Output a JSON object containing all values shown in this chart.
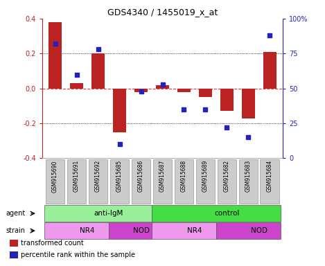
{
  "title": "GDS4340 / 1455019_x_at",
  "samples": [
    "GSM915690",
    "GSM915691",
    "GSM915692",
    "GSM915685",
    "GSM915686",
    "GSM915687",
    "GSM915688",
    "GSM915689",
    "GSM915682",
    "GSM915683",
    "GSM915684"
  ],
  "bar_values": [
    0.38,
    0.03,
    0.2,
    -0.25,
    -0.02,
    0.02,
    -0.02,
    -0.05,
    -0.13,
    -0.17,
    0.21
  ],
  "scatter_values": [
    82,
    60,
    78,
    10,
    48,
    53,
    35,
    35,
    22,
    15,
    88
  ],
  "ylim": [
    -0.4,
    0.4
  ],
  "yticks_left": [
    -0.4,
    -0.2,
    0.0,
    0.2,
    0.4
  ],
  "yticks_right": [
    0,
    25,
    50,
    75,
    100
  ],
  "bar_color": "#bb2222",
  "scatter_color": "#2222bb",
  "zero_line_color": "#ee3333",
  "agent_row": [
    {
      "label": "anti-IgM",
      "start": 0,
      "end": 5,
      "color": "#99ee99"
    },
    {
      "label": "control",
      "start": 5,
      "end": 11,
      "color": "#44dd44"
    }
  ],
  "strain_row": [
    {
      "label": "NR4",
      "start": 0,
      "end": 3,
      "color": "#ee99ee"
    },
    {
      "label": "NOD",
      "start": 3,
      "end": 5,
      "color": "#cc44cc"
    },
    {
      "label": "NR4",
      "start": 5,
      "end": 8,
      "color": "#ee99ee"
    },
    {
      "label": "NOD",
      "start": 8,
      "end": 11,
      "color": "#cc44cc"
    }
  ],
  "legend_items": [
    {
      "label": "transformed count",
      "color": "#bb2222"
    },
    {
      "label": "percentile rank within the sample",
      "color": "#2222bb"
    }
  ],
  "background_color": "#ffffff",
  "sample_box_color": "#cccccc",
  "sample_box_edge": "#999999"
}
